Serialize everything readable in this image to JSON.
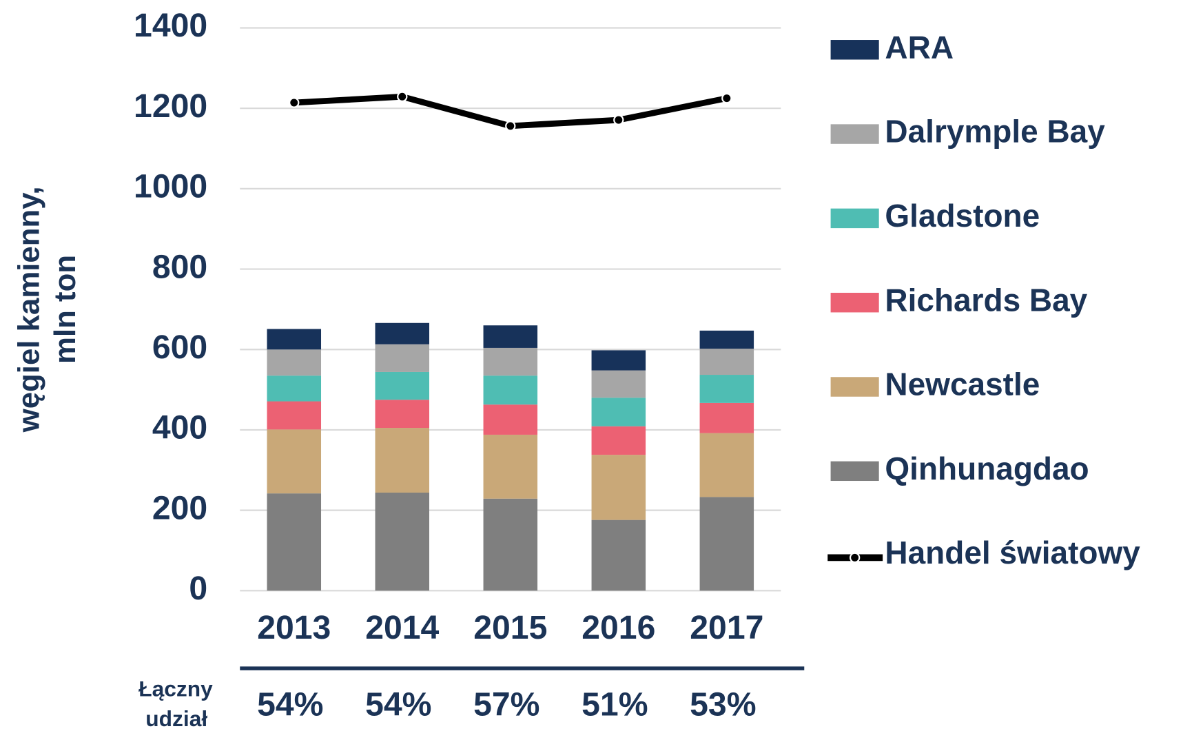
{
  "chart_data": {
    "type": "bar",
    "stacked": true,
    "y_label": [
      "węgiel kamienny,",
      "mln ton"
    ],
    "categories": [
      "2013",
      "2014",
      "2015",
      "2016",
      "2017"
    ],
    "series": [
      {
        "name": "ARA",
        "color": "#17325a",
        "values": [
          51,
          53,
          56,
          50,
          45
        ]
      },
      {
        "name": "Dalrymple Bay",
        "color": "#a6a6a6",
        "values": [
          65,
          69,
          69,
          68,
          65
        ]
      },
      {
        "name": "Gladstone",
        "color": "#4fbdb3",
        "values": [
          64,
          69,
          72,
          71,
          70
        ]
      },
      {
        "name": "Richards Bay",
        "color": "#ec6173",
        "values": [
          70,
          70,
          75,
          71,
          75
        ]
      },
      {
        "name": "Newcastle",
        "color": "#c9a878",
        "values": [
          159,
          161,
          159,
          162,
          159
        ]
      },
      {
        "name": "Qinhunagdao",
        "color": "#7f7f7f",
        "values": [
          242,
          244,
          229,
          176,
          233
        ]
      },
      {
        "name": "Handel światowy",
        "color": "#000000",
        "type": "line",
        "values": [
          1214,
          1229,
          1156,
          1171,
          1225
        ]
      }
    ],
    "ylim": [
      0,
      1400
    ],
    "yticks": [
      0,
      200,
      400,
      600,
      800,
      1000,
      1200,
      1400
    ],
    "grid": true,
    "legend": "right",
    "shares": {
      "label": [
        "Łączny",
        "udział"
      ],
      "values": [
        54,
        54,
        57,
        51,
        53
      ],
      "value_labels": [
        "54%",
        "54%",
        "57%",
        "51%",
        "53%"
      ]
    }
  }
}
